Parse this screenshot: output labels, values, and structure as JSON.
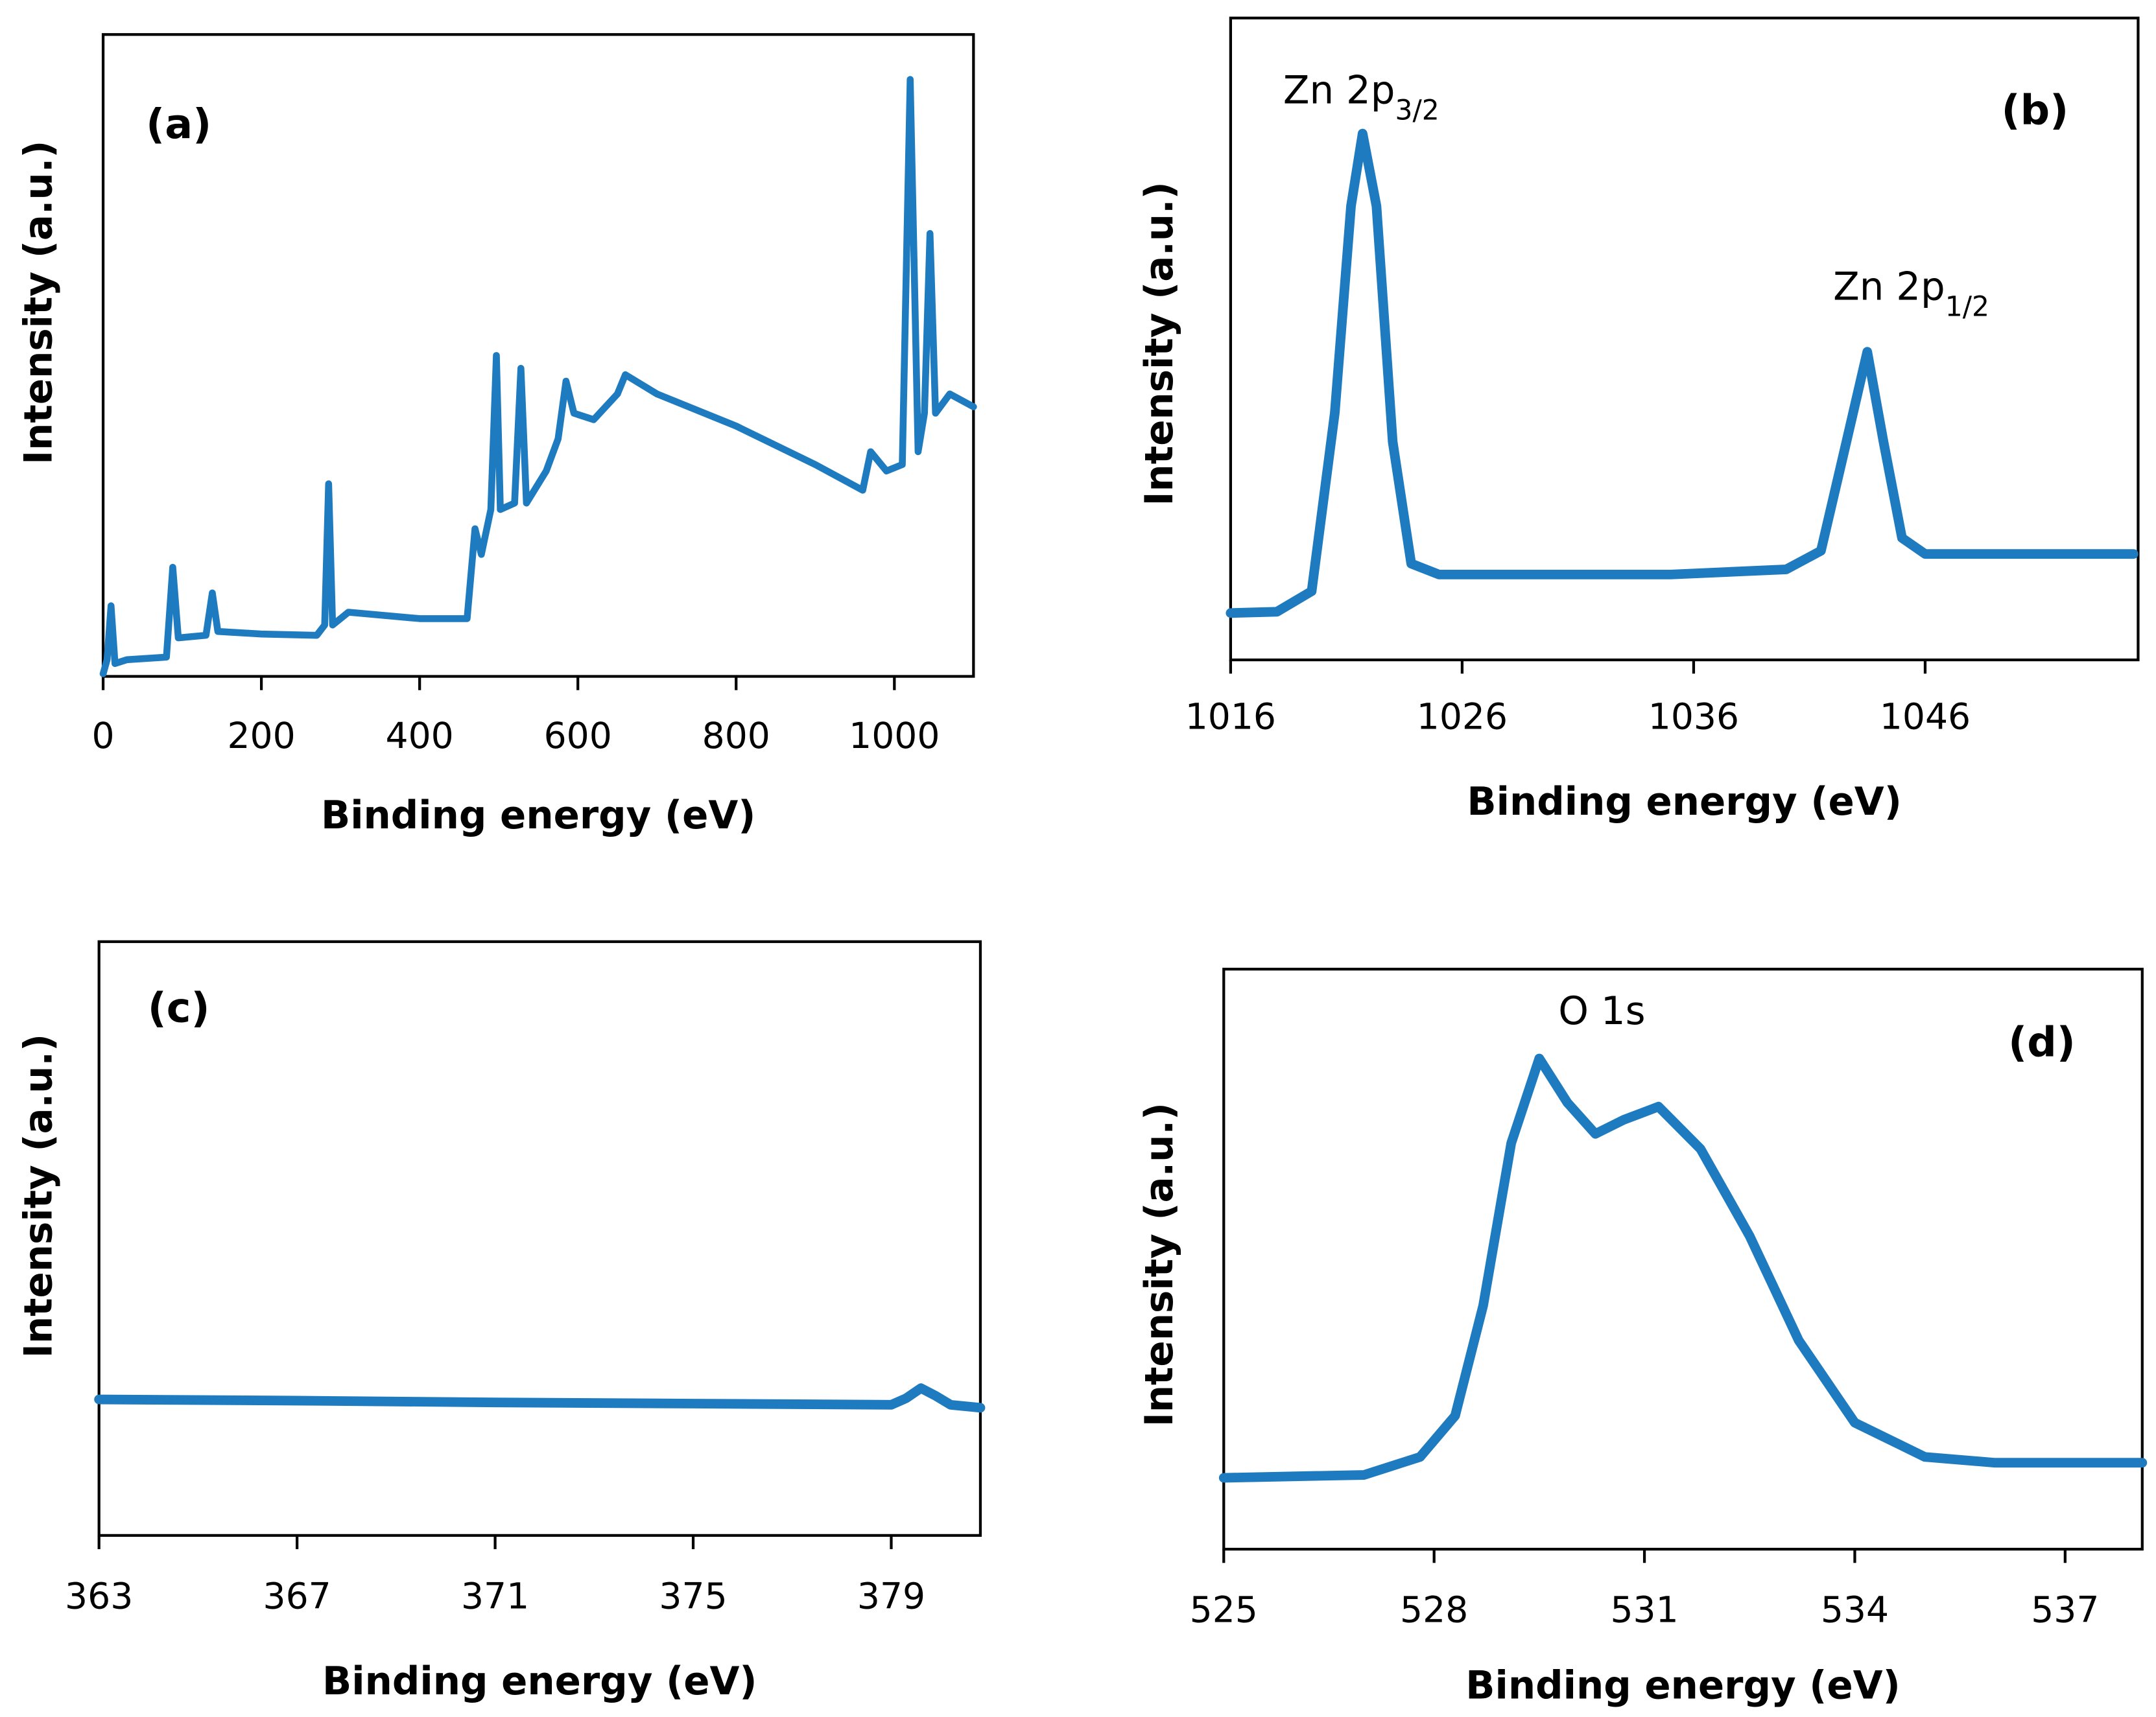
{
  "chart_data": [
    {
      "type": "line",
      "label": "(a)",
      "x_label": "Binding energy (eV)",
      "y_label": "Intensity (a.u.)",
      "xlim": [
        0,
        1100
      ],
      "xticks": [
        0,
        200,
        400,
        600,
        800,
        1000
      ],
      "ylim": [
        0,
        100
      ],
      "x": [
        0,
        5,
        10,
        15,
        30,
        80,
        88,
        95,
        130,
        138,
        145,
        200,
        270,
        280,
        285,
        290,
        310,
        400,
        460,
        470,
        478,
        490,
        497,
        502,
        520,
        528,
        535,
        560,
        575,
        585,
        595,
        620,
        650,
        660,
        700,
        800,
        900,
        960,
        970,
        990,
        1010,
        1020,
        1030,
        1038,
        1045,
        1052,
        1070,
        1100
      ],
      "series": [
        {
          "color": "#1f7bbf",
          "values": [
            0.4,
            2.6,
            11,
            2,
            2.6,
            3,
            17,
            6,
            6.4,
            13,
            7,
            6.6,
            6.4,
            8,
            30,
            8,
            10,
            9,
            9,
            23,
            19,
            26,
            50,
            26,
            27,
            48,
            27,
            32,
            37,
            46,
            41,
            40,
            44,
            47,
            44,
            39,
            33,
            29,
            35,
            32,
            33,
            93,
            35,
            41,
            69,
            41,
            44,
            42
          ]
        }
      ]
    },
    {
      "type": "line",
      "label": "(b)",
      "x_label": "Binding energy (eV)",
      "y_label": "Intensity (a.u.)",
      "xlim": [
        1016,
        1055.2
      ],
      "xticks": [
        1016,
        1026,
        1036,
        1046
      ],
      "ylim": [
        0,
        100
      ],
      "annotations": [
        {
          "text": "Zn 2p",
          "subscript": "3/2"
        },
        {
          "text": "Zn 2p",
          "subscript": "1/2"
        }
      ],
      "x": [
        1016,
        1018,
        1019.5,
        1020.5,
        1021.2,
        1021.7,
        1022.3,
        1023,
        1023.8,
        1025,
        1035,
        1040,
        1041.5,
        1042.6,
        1043.5,
        1044.2,
        1045,
        1046,
        1055
      ],
      "series": [
        {
          "color": "#1f7bbf",
          "values": [
            7.3,
            7.5,
            10.7,
            38.5,
            70.7,
            82,
            70.7,
            34,
            15,
            13.3,
            13.3,
            14.1,
            17,
            34,
            48,
            34,
            19,
            16.5,
            16.5
          ]
        }
      ]
    },
    {
      "type": "line",
      "label": "(c)",
      "x_label": "Binding energy (eV)",
      "y_label": "Intensity (a.u.)",
      "xlim": [
        363,
        380.8
      ],
      "xticks": [
        363,
        367,
        371,
        375,
        379
      ],
      "ylim": [
        0,
        100
      ],
      "x": [
        363,
        367,
        371,
        375,
        379,
        379.3,
        379.6,
        379.9,
        380.2,
        380.8
      ],
      "series": [
        {
          "color": "#1f7bbf",
          "values": [
            22.9,
            22.7,
            22.4,
            22.2,
            22,
            23.1,
            24.8,
            23.5,
            22,
            21.5
          ]
        }
      ]
    },
    {
      "type": "line",
      "label": "(d)",
      "x_label": "Binding energy (eV)",
      "y_label": "Intensity (a.u.)",
      "xlim": [
        525,
        538.1
      ],
      "xticks": [
        525,
        528,
        531,
        534,
        537
      ],
      "ylim": [
        0,
        100
      ],
      "annotations": [
        {
          "text": "O 1s"
        }
      ],
      "x": [
        525,
        527,
        527.8,
        528.3,
        528.7,
        529.1,
        529.5,
        529.9,
        530.3,
        530.7,
        531.2,
        531.8,
        532.5,
        533.2,
        534,
        535,
        536,
        538.1
      ],
      "series": [
        {
          "color": "#1f7bbf",
          "values": [
            12.3,
            12.8,
            15.9,
            23,
            42,
            70,
            84.6,
            77,
            71.6,
            74,
            76.3,
            69,
            54,
            36,
            21.8,
            15.9,
            14.9,
            14.9
          ]
        }
      ]
    }
  ]
}
